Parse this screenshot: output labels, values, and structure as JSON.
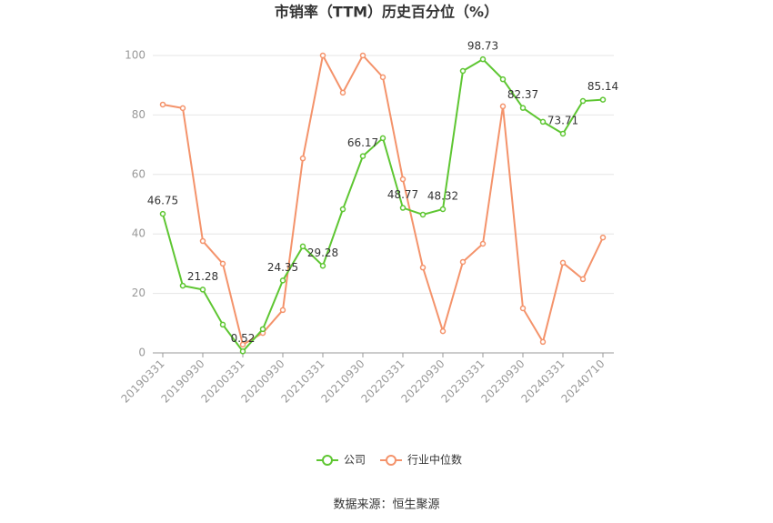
{
  "chart_data": {
    "type": "line",
    "title": "市销率（TTM）历史百分位（%）",
    "categories": [
      "20190331",
      null,
      "20190930",
      null,
      "20200331",
      null,
      "20200930",
      null,
      "20210331",
      null,
      "20210930",
      null,
      "20220331",
      null,
      "20220930",
      null,
      "20230331",
      null,
      "20230930",
      null,
      "20240331",
      null,
      "20240710"
    ],
    "series": [
      {
        "name": "公司",
        "color": "#5ec632",
        "values": [
          46.75,
          22.6,
          21.28,
          9.5,
          0.52,
          8,
          24.35,
          35.8,
          29.28,
          48.3,
          66.17,
          72.2,
          48.77,
          46.5,
          48.32,
          94.8,
          98.73,
          92,
          82.37,
          77.7,
          73.71,
          84.7,
          85.14
        ],
        "value_labels": [
          "46.75",
          null,
          "21.28",
          null,
          "0.52",
          null,
          "24.35",
          null,
          "29.28",
          null,
          "66.17",
          null,
          "48.77",
          null,
          "48.32",
          null,
          "98.73",
          null,
          "82.37",
          null,
          "73.71",
          null,
          "85.14"
        ]
      },
      {
        "name": "行业中位数",
        "color": "#f4936b",
        "values": [
          83.5,
          82.3,
          37.6,
          30,
          2.8,
          6.7,
          14.4,
          65.4,
          100,
          87.5,
          100,
          92.7,
          58.4,
          28.7,
          7.3,
          30.6,
          36.7,
          82.9,
          15,
          3.7,
          30.3,
          24.8,
          38.8
        ]
      }
    ],
    "ylim": [
      0,
      100
    ],
    "yticks": [
      0,
      20,
      40,
      60,
      80,
      100
    ],
    "grid": true,
    "source": "数据来源：恒生聚源"
  }
}
